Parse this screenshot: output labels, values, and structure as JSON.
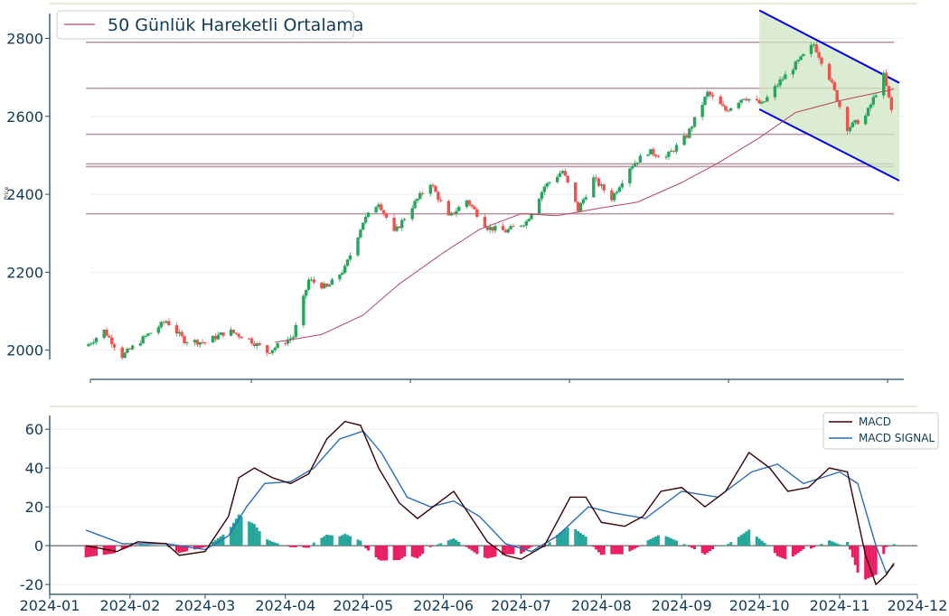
{
  "chart_data": [
    {
      "type": "candlestick",
      "ylabel": "Price",
      "ylim": [
        1925,
        2880
      ],
      "xrange": [
        "2024-01-01",
        "2024-12-01"
      ],
      "yticks": [
        2000,
        2200,
        2400,
        2600,
        2800
      ],
      "grid": true,
      "legend": {
        "position": "top-left",
        "entries": [
          "50 Günlük Hareketli Ortalama"
        ]
      },
      "colors": {
        "up": "#26a65b",
        "down": "#ef5350",
        "ma": "#b34766",
        "levels": "#b89aa5",
        "channel": "#0000e6",
        "channel_fill": "#cfe6c3",
        "axis": "#1f4e6b",
        "text": "#0f3b59"
      },
      "horizontal_levels": [
        {
          "value": 2790,
          "x_start": "2024-01-15",
          "x_end": "2024-11-22"
        },
        {
          "value": 2672,
          "x_start": "2024-01-15",
          "x_end": "2024-11-22"
        },
        {
          "value": 2554,
          "x_start": "2024-01-15",
          "x_end": "2024-11-22"
        },
        {
          "value": 2478,
          "x_start": "2024-01-15",
          "x_end": "2024-11-22"
        },
        {
          "value": 2471,
          "x_start": "2024-01-15",
          "x_end": "2024-11-22"
        },
        {
          "value": 2350,
          "x_start": "2024-01-15",
          "x_end": "2024-11-22"
        }
      ],
      "channel": {
        "upper": [
          [
            "2024-10-01",
            2872
          ],
          [
            "2024-11-24",
            2686
          ]
        ],
        "lower": [
          [
            "2024-10-01",
            2618
          ],
          [
            "2024-11-24",
            2435
          ]
        ],
        "fill": "#cfe6c3"
      },
      "price_path": [
        [
          "2024-01-15",
          2010
        ],
        [
          "2024-01-22",
          2050
        ],
        [
          "2024-01-29",
          1985
        ],
        [
          "2024-02-07",
          2035
        ],
        [
          "2024-02-15",
          2075
        ],
        [
          "2024-02-22",
          2025
        ],
        [
          "2024-03-01",
          2020
        ],
        [
          "2024-03-10",
          2050
        ],
        [
          "2024-03-18",
          2028
        ],
        [
          "2024-03-25",
          1995
        ],
        [
          "2024-04-04",
          2035
        ],
        [
          "2024-04-10",
          2180
        ],
        [
          "2024-04-17",
          2160
        ],
        [
          "2024-04-24",
          2210
        ],
        [
          "2024-05-01",
          2330
        ],
        [
          "2024-05-07",
          2380
        ],
        [
          "2024-05-13",
          2300
        ],
        [
          "2024-05-20",
          2370
        ],
        [
          "2024-05-27",
          2430
        ],
        [
          "2024-06-03",
          2340
        ],
        [
          "2024-06-10",
          2385
        ],
        [
          "2024-06-18",
          2315
        ],
        [
          "2024-06-25",
          2305
        ],
        [
          "2024-07-03",
          2330
        ],
        [
          "2024-07-10",
          2420
        ],
        [
          "2024-07-17",
          2460
        ],
        [
          "2024-07-23",
          2360
        ],
        [
          "2024-07-29",
          2440
        ],
        [
          "2024-08-05",
          2390
        ],
        [
          "2024-08-12",
          2470
        ],
        [
          "2024-08-19",
          2510
        ],
        [
          "2024-08-26",
          2495
        ],
        [
          "2024-09-03",
          2550
        ],
        [
          "2024-09-11",
          2660
        ],
        [
          "2024-09-18",
          2615
        ],
        [
          "2024-09-25",
          2650
        ],
        [
          "2024-10-02",
          2630
        ],
        [
          "2024-10-09",
          2690
        ],
        [
          "2024-10-16",
          2740
        ],
        [
          "2024-10-22",
          2785
        ],
        [
          "2024-10-28",
          2700
        ],
        [
          "2024-11-04",
          2570
        ],
        [
          "2024-11-11",
          2600
        ],
        [
          "2024-11-18",
          2705
        ],
        [
          "2024-11-21",
          2615
        ]
      ],
      "moving_average": [
        [
          "2024-03-28",
          2020
        ],
        [
          "2024-04-15",
          2040
        ],
        [
          "2024-05-01",
          2090
        ],
        [
          "2024-05-15",
          2170
        ],
        [
          "2024-06-01",
          2250
        ],
        [
          "2024-06-15",
          2310
        ],
        [
          "2024-07-01",
          2350
        ],
        [
          "2024-07-15",
          2345
        ],
        [
          "2024-08-01",
          2365
        ],
        [
          "2024-08-15",
          2380
        ],
        [
          "2024-09-01",
          2430
        ],
        [
          "2024-09-15",
          2480
        ],
        [
          "2024-10-01",
          2545
        ],
        [
          "2024-10-15",
          2610
        ],
        [
          "2024-11-01",
          2640
        ],
        [
          "2024-11-22",
          2670
        ]
      ]
    },
    {
      "type": "line",
      "ylim": [
        -26,
        68
      ],
      "yticks": [
        -20,
        0,
        20,
        40,
        60
      ],
      "x_ticks": [
        "2024-01",
        "2024-02",
        "2024-03",
        "2024-04",
        "2024-05",
        "2024-06",
        "2024-07",
        "2024-08",
        "2024-09",
        "2024-10",
        "2024-11",
        "2024-12"
      ],
      "legend": {
        "position": "top-right",
        "entries": [
          "MACD",
          "MACD SIGNAL"
        ]
      },
      "series": [
        {
          "name": "MACD",
          "color": "#3b0000",
          "points": [
            [
              "2024-01-15",
              0
            ],
            [
              "2024-01-27",
              -3
            ],
            [
              "2024-02-04",
              2
            ],
            [
              "2024-02-15",
              1
            ],
            [
              "2024-02-20",
              -5
            ],
            [
              "2024-03-01",
              -3
            ],
            [
              "2024-03-10",
              15
            ],
            [
              "2024-03-14",
              35
            ],
            [
              "2024-03-20",
              40
            ],
            [
              "2024-03-27",
              35
            ],
            [
              "2024-04-03",
              32
            ],
            [
              "2024-04-10",
              37
            ],
            [
              "2024-04-17",
              55
            ],
            [
              "2024-04-24",
              64
            ],
            [
              "2024-04-30",
              62
            ],
            [
              "2024-05-07",
              40
            ],
            [
              "2024-05-15",
              22
            ],
            [
              "2024-05-22",
              14
            ],
            [
              "2024-05-30",
              22
            ],
            [
              "2024-06-05",
              28
            ],
            [
              "2024-06-12",
              14
            ],
            [
              "2024-06-18",
              2
            ],
            [
              "2024-06-25",
              -5
            ],
            [
              "2024-07-01",
              -7
            ],
            [
              "2024-07-10",
              0
            ],
            [
              "2024-07-20",
              25
            ],
            [
              "2024-07-26",
              25
            ],
            [
              "2024-08-01",
              12
            ],
            [
              "2024-08-10",
              10
            ],
            [
              "2024-08-17",
              15
            ],
            [
              "2024-08-24",
              28
            ],
            [
              "2024-09-01",
              30
            ],
            [
              "2024-09-10",
              20
            ],
            [
              "2024-09-18",
              28
            ],
            [
              "2024-09-27",
              48
            ],
            [
              "2024-10-05",
              40
            ],
            [
              "2024-10-12",
              28
            ],
            [
              "2024-10-20",
              30
            ],
            [
              "2024-10-28",
              40
            ],
            [
              "2024-11-04",
              38
            ],
            [
              "2024-11-11",
              -5
            ],
            [
              "2024-11-15",
              -20
            ],
            [
              "2024-11-19",
              -15
            ],
            [
              "2024-11-22",
              -9
            ]
          ]
        },
        {
          "name": "MACD SIGNAL",
          "color": "#2b6cb8",
          "points": [
            [
              "2024-01-15",
              8
            ],
            [
              "2024-01-29",
              1
            ],
            [
              "2024-02-15",
              1
            ],
            [
              "2024-03-01",
              -2
            ],
            [
              "2024-03-10",
              5
            ],
            [
              "2024-03-17",
              20
            ],
            [
              "2024-03-24",
              32
            ],
            [
              "2024-04-03",
              33
            ],
            [
              "2024-04-12",
              40
            ],
            [
              "2024-04-22",
              55
            ],
            [
              "2024-05-01",
              59
            ],
            [
              "2024-05-08",
              48
            ],
            [
              "2024-05-18",
              25
            ],
            [
              "2024-05-27",
              20
            ],
            [
              "2024-06-05",
              23
            ],
            [
              "2024-06-15",
              15
            ],
            [
              "2024-06-25",
              1
            ],
            [
              "2024-07-05",
              -3
            ],
            [
              "2024-07-15",
              5
            ],
            [
              "2024-07-27",
              20
            ],
            [
              "2024-08-05",
              17
            ],
            [
              "2024-08-18",
              14
            ],
            [
              "2024-09-01",
              28
            ],
            [
              "2024-09-15",
              25
            ],
            [
              "2024-09-28",
              38
            ],
            [
              "2024-10-08",
              42
            ],
            [
              "2024-10-18",
              32
            ],
            [
              "2024-11-01",
              38
            ],
            [
              "2024-11-08",
              32
            ],
            [
              "2024-11-15",
              0
            ],
            [
              "2024-11-19",
              -14
            ],
            [
              "2024-11-22",
              -10
            ]
          ]
        }
      ]
    }
  ]
}
